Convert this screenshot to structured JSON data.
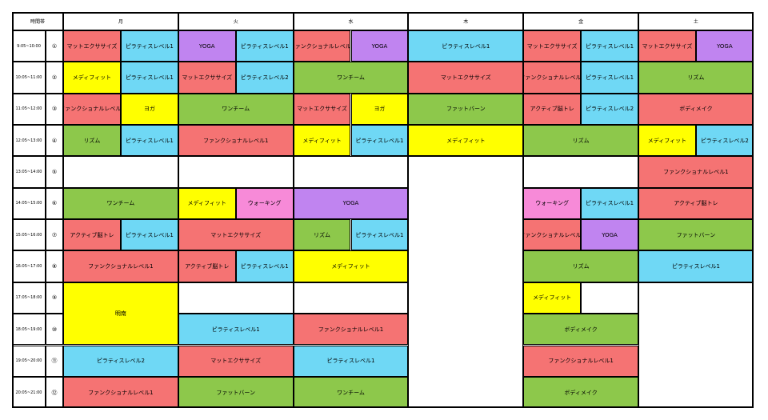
{
  "header": {
    "time": "時間帯",
    "days": [
      "月",
      "火",
      "水",
      "木",
      "金",
      "土"
    ]
  },
  "times": [
    "9:05~10:00",
    "10:05~11:00",
    "11:05~12:00",
    "12:05~13:00",
    "13:05~14:00",
    "14:05~15:00",
    "15:05~16:00",
    "16:05~17:00",
    "17:05~18:00",
    "18:05~19:00",
    "19:05~20:00",
    "20:05~21:00"
  ],
  "numbers": [
    "①",
    "②",
    "③",
    "④",
    "⑤",
    "⑥",
    "⑦",
    "⑧",
    "⑨",
    "⑩",
    "⑪",
    "⑫"
  ],
  "days": [
    {
      "cells": [
        {
          "rowspan": 1,
          "classes": [
            {
              "label": "マットエクササイズ",
              "color": "#f57373"
            },
            {
              "label": "ピラティスレベル1",
              "color": "#6fd8f5"
            }
          ]
        },
        {
          "rowspan": 1,
          "classes": [
            {
              "label": "メディフィット",
              "color": "#ffff00"
            },
            {
              "label": "ピラティスレベル1",
              "color": "#6fd8f5"
            }
          ]
        },
        {
          "rowspan": 1,
          "classes": [
            {
              "label": "ファンクショナルレベル1",
              "color": "#f57373"
            },
            {
              "label": "ヨガ",
              "color": "#ffff00"
            }
          ]
        },
        {
          "rowspan": 1,
          "classes": [
            {
              "label": "リズム",
              "color": "#8dc84b"
            },
            {
              "label": "ピラティスレベル1",
              "color": "#6fd8f5"
            }
          ]
        },
        {
          "rowspan": 1,
          "classes": []
        },
        {
          "rowspan": 1,
          "classes": [
            {
              "label": "ワンチーム",
              "color": "#8dc84b"
            }
          ]
        },
        {
          "rowspan": 1,
          "classes": [
            {
              "label": "アクティブ脳トレ",
              "color": "#f57373"
            },
            {
              "label": "ピラティスレベル1",
              "color": "#6fd8f5"
            }
          ]
        },
        {
          "rowspan": 1,
          "classes": [
            {
              "label": "ファンクショナルレベル1",
              "color": "#f57373"
            }
          ]
        },
        {
          "rowspan": 2,
          "classes": [
            {
              "label": "明南",
              "color": "#ffff00"
            }
          ]
        },
        {
          "rowspan": 1,
          "classes": [
            {
              "label": "ピラティスレベル2",
              "color": "#6fd8f5"
            }
          ]
        },
        {
          "rowspan": 1,
          "classes": [
            {
              "label": "ファンクショナルレベル1",
              "color": "#f57373"
            }
          ]
        }
      ]
    },
    {
      "cells": [
        {
          "rowspan": 1,
          "classes": [
            {
              "label": "YOGA",
              "color": "#c084f0"
            },
            {
              "label": "ピラティスレベル1",
              "color": "#6fd8f5"
            }
          ]
        },
        {
          "rowspan": 1,
          "classes": [
            {
              "label": "マットエクササイズ",
              "color": "#f57373"
            },
            {
              "label": "ピラティスレベル2",
              "color": "#6fd8f5"
            }
          ]
        },
        {
          "rowspan": 1,
          "classes": [
            {
              "label": "ワンチーム",
              "color": "#8dc84b"
            }
          ]
        },
        {
          "rowspan": 1,
          "classes": [
            {
              "label": "ファンクショナルレベル1",
              "color": "#f57373"
            }
          ]
        },
        {
          "rowspan": 1,
          "classes": []
        },
        {
          "rowspan": 1,
          "classes": [
            {
              "label": "メディフィット",
              "color": "#ffff00"
            },
            {
              "label": "ウォーキング",
              "color": "#f78ad8"
            }
          ]
        },
        {
          "rowspan": 1,
          "classes": [
            {
              "label": "マットエクササイズ",
              "color": "#f57373"
            }
          ]
        },
        {
          "rowspan": 1,
          "classes": [
            {
              "label": "アクティブ脳トレ",
              "color": "#f57373"
            },
            {
              "label": "ピラティスレベル1",
              "color": "#6fd8f5"
            }
          ]
        },
        {
          "rowspan": 1,
          "classes": []
        },
        {
          "rowspan": 1,
          "classes": [
            {
              "label": "ピラティスレベル1",
              "color": "#6fd8f5"
            }
          ]
        },
        {
          "rowspan": 1,
          "classes": [
            {
              "label": "マットエクササイズ",
              "color": "#f57373"
            }
          ]
        },
        {
          "rowspan": 1,
          "classes": [
            {
              "label": "ファットバーン",
              "color": "#8dc84b"
            }
          ]
        }
      ]
    },
    {
      "cells": [
        {
          "rowspan": 1,
          "classes": [
            {
              "label": "ファンクショナルレベル1",
              "color": "#f57373"
            },
            {
              "label": "YOGA",
              "color": "#c084f0"
            }
          ]
        },
        {
          "rowspan": 1,
          "classes": [
            {
              "label": "ワンチーム",
              "color": "#8dc84b"
            }
          ]
        },
        {
          "rowspan": 1,
          "classes": [
            {
              "label": "マットエクササイズ",
              "color": "#f57373"
            },
            {
              "label": "ヨガ",
              "color": "#ffff00"
            }
          ]
        },
        {
          "rowspan": 1,
          "classes": [
            {
              "label": "メディフィット",
              "color": "#ffff00"
            },
            {
              "label": "ピラティスレベル1",
              "color": "#6fd8f5"
            }
          ]
        },
        {
          "rowspan": 1,
          "classes": []
        },
        {
          "rowspan": 1,
          "classes": [
            {
              "label": "YOGA",
              "color": "#c084f0"
            }
          ]
        },
        {
          "rowspan": 1,
          "classes": [
            {
              "label": "リズム",
              "color": "#8dc84b"
            },
            {
              "label": "ピラティスレベル1",
              "color": "#6fd8f5"
            }
          ]
        },
        {
          "rowspan": 1,
          "classes": [
            {
              "label": "メディフィット",
              "color": "#ffff00"
            }
          ]
        },
        {
          "rowspan": 1,
          "classes": []
        },
        {
          "rowspan": 1,
          "classes": [
            {
              "label": "ファンクショナルレベル1",
              "color": "#f57373"
            }
          ]
        },
        {
          "rowspan": 1,
          "classes": [
            {
              "label": "ピラティスレベル1",
              "color": "#6fd8f5"
            }
          ]
        },
        {
          "rowspan": 1,
          "classes": [
            {
              "label": "ワンチーム",
              "color": "#8dc84b"
            }
          ]
        }
      ]
    },
    {
      "cells": [
        {
          "rowspan": 1,
          "classes": [
            {
              "label": "ピラティスレベル1",
              "color": "#6fd8f5"
            }
          ]
        },
        {
          "rowspan": 1,
          "classes": [
            {
              "label": "マットエクササイズ",
              "color": "#f57373"
            }
          ]
        },
        {
          "rowspan": 1,
          "classes": [
            {
              "label": "ファットバーン",
              "color": "#8dc84b"
            }
          ]
        },
        {
          "rowspan": 1,
          "classes": [
            {
              "label": "メディフィット",
              "color": "#ffff00"
            }
          ]
        },
        {
          "rowspan": 8,
          "classes": []
        }
      ]
    },
    {
      "cells": [
        {
          "rowspan": 1,
          "classes": [
            {
              "label": "マットエクササイズ",
              "color": "#f57373"
            },
            {
              "label": "ピラティスレベル1",
              "color": "#6fd8f5"
            }
          ]
        },
        {
          "rowspan": 1,
          "classes": [
            {
              "label": "ファンクショナルレベル1",
              "color": "#f57373"
            },
            {
              "label": "ピラティスレベル1",
              "color": "#6fd8f5"
            }
          ]
        },
        {
          "rowspan": 1,
          "classes": [
            {
              "label": "アクティブ脳トレ",
              "color": "#f57373"
            },
            {
              "label": "ピラティスレベル2",
              "color": "#6fd8f5"
            }
          ]
        },
        {
          "rowspan": 1,
          "classes": [
            {
              "label": "リズム",
              "color": "#8dc84b"
            }
          ]
        },
        {
          "rowspan": 1,
          "classes": []
        },
        {
          "rowspan": 1,
          "classes": [
            {
              "label": "ウォーキング",
              "color": "#f78ad8"
            },
            {
              "label": "ピラティスレベル1",
              "color": "#6fd8f5"
            }
          ]
        },
        {
          "rowspan": 1,
          "classes": [
            {
              "label": "ファンクショナルレベル1",
              "color": "#f57373"
            },
            {
              "label": "YOGA",
              "color": "#c084f0"
            }
          ]
        },
        {
          "rowspan": 1,
          "classes": [
            {
              "label": "リズム",
              "color": "#8dc84b"
            }
          ]
        },
        {
          "rowspan": 1,
          "classes": [
            {
              "label": "メディフィット",
              "color": "#ffff00"
            },
            null
          ]
        },
        {
          "rowspan": 1,
          "classes": [
            {
              "label": "ボディメイク",
              "color": "#8dc84b"
            }
          ]
        },
        {
          "rowspan": 1,
          "classes": [
            {
              "label": "ファンクショナルレベル1",
              "color": "#f57373"
            }
          ]
        },
        {
          "rowspan": 1,
          "classes": [
            {
              "label": "ボディメイク",
              "color": "#8dc84b"
            }
          ]
        }
      ]
    },
    {
      "cells": [
        {
          "rowspan": 1,
          "classes": [
            {
              "label": "マットエクササイズ",
              "color": "#f57373"
            },
            {
              "label": "YOGA",
              "color": "#c084f0"
            }
          ]
        },
        {
          "rowspan": 1,
          "classes": [
            {
              "label": "リズム",
              "color": "#8dc84b"
            }
          ]
        },
        {
          "rowspan": 1,
          "classes": [
            {
              "label": "ボディメイク",
              "color": "#f57373"
            }
          ]
        },
        {
          "rowspan": 1,
          "classes": [
            {
              "label": "メディフィット",
              "color": "#ffff00"
            },
            {
              "label": "ピラティスレベル2",
              "color": "#6fd8f5"
            }
          ]
        },
        {
          "rowspan": 1,
          "classes": [
            {
              "label": "ファンクショナルレベル1",
              "color": "#f57373"
            }
          ]
        },
        {
          "rowspan": 1,
          "classes": [
            {
              "label": "アクティブ脳トレ",
              "color": "#f57373"
            }
          ]
        },
        {
          "rowspan": 1,
          "classes": [
            {
              "label": "ファットバーン",
              "color": "#8dc84b"
            }
          ]
        },
        {
          "rowspan": 1,
          "classes": [
            {
              "label": "ピラティスレベル1",
              "color": "#6fd8f5"
            }
          ]
        },
        {
          "rowspan": 4,
          "classes": []
        }
      ]
    }
  ]
}
